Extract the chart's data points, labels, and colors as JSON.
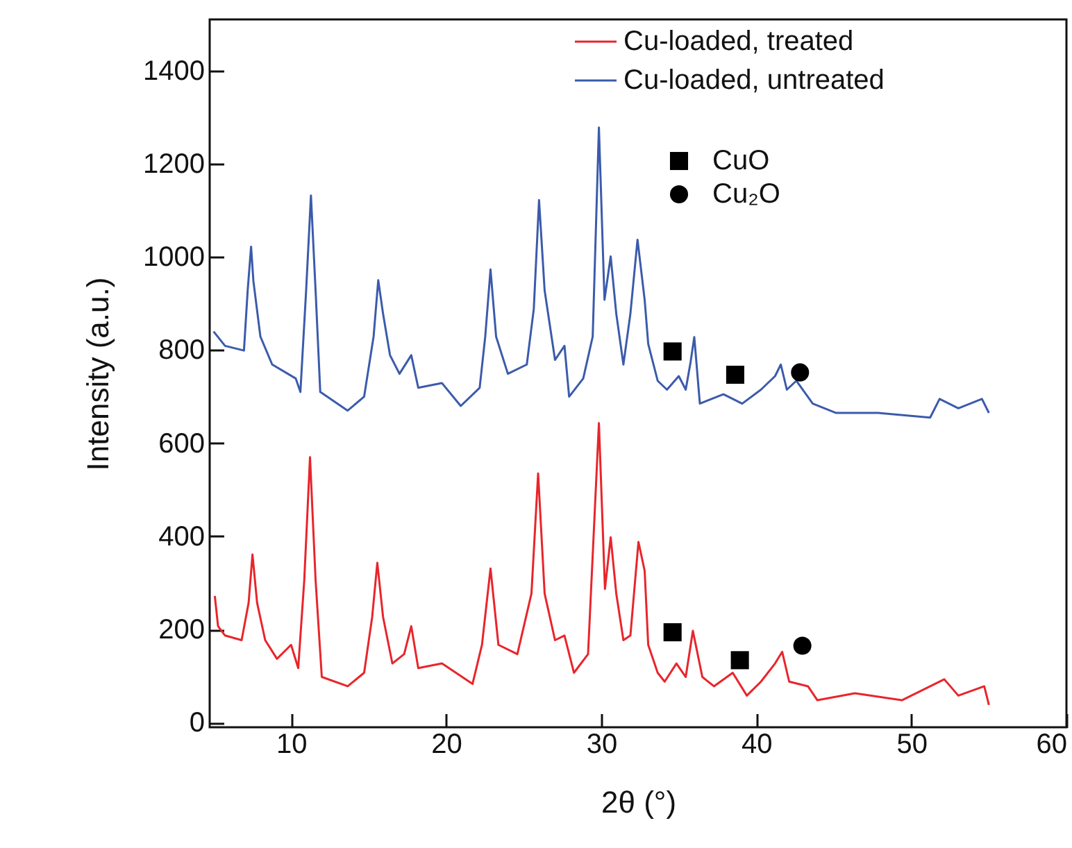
{
  "chart_data": {
    "type": "line",
    "xlabel": "2θ (°)",
    "ylabel": "Intensity (a.u.)",
    "xlim": [
      4.75,
      60
    ],
    "ylim": [
      -10,
      1510
    ],
    "xticks": [
      10,
      20,
      30,
      40,
      50,
      60
    ],
    "yticks": [
      0,
      200,
      400,
      600,
      800,
      1000,
      1200,
      1400
    ],
    "grid": false,
    "legend": "top right",
    "series": [
      {
        "name": "Cu-loaded, treated",
        "color": "#e8252b",
        "x": [
          5.08,
          5.29,
          5.74,
          6.81,
          7.26,
          7.51,
          7.81,
          8.33,
          9.09,
          10.0,
          10.46,
          10.85,
          11.22,
          11.58,
          11.98,
          13.65,
          14.71,
          15.23,
          15.56,
          15.93,
          16.53,
          17.29,
          17.75,
          18.2,
          19.73,
          21.7,
          22.31,
          22.86,
          23.37,
          24.59,
          25.5,
          25.93,
          26.35,
          27.02,
          27.63,
          28.24,
          29.15,
          29.85,
          30.24,
          30.61,
          30.97,
          31.43,
          31.88,
          32.4,
          32.8,
          33.03,
          33.64,
          34.09,
          34.85,
          35.45,
          35.91,
          36.52,
          37.27,
          38.48,
          39.39,
          40.3,
          41.21,
          41.67,
          42.12,
          43.33,
          43.94,
          46.36,
          49.39,
          52.12,
          53.03,
          54.7,
          55.0
        ],
        "values": [
          272,
          207,
          187,
          177,
          257,
          361,
          257,
          177,
          137,
          167,
          117,
          306,
          570,
          306,
          98,
          78,
          107,
          227,
          343,
          227,
          127,
          147,
          207,
          117,
          127,
          83,
          167,
          331,
          167,
          147,
          277,
          535,
          277,
          177,
          187,
          107,
          147,
          643,
          287,
          398,
          277,
          177,
          187,
          388,
          326,
          167,
          107,
          88,
          127,
          98,
          197,
          98,
          78,
          107,
          58,
          88,
          127,
          152,
          88,
          78,
          48,
          63,
          48,
          93,
          58,
          78,
          38
        ]
      },
      {
        "name": "Cu-loaded, untreated",
        "color": "#3b5bab",
        "x": [
          5.0,
          5.74,
          6.96,
          7.2,
          7.42,
          7.57,
          8.02,
          8.78,
          10.3,
          10.6,
          10.97,
          11.28,
          11.58,
          11.88,
          13.65,
          14.71,
          15.32,
          15.62,
          15.93,
          16.38,
          16.99,
          17.75,
          18.2,
          19.73,
          20.94,
          22.16,
          22.52,
          22.86,
          23.22,
          23.98,
          25.2,
          25.65,
          25.99,
          26.35,
          27.02,
          27.63,
          27.93,
          28.84,
          29.45,
          29.85,
          30.21,
          30.61,
          30.97,
          31.43,
          31.88,
          32.34,
          32.8,
          33.03,
          33.64,
          34.24,
          35.0,
          35.45,
          35.76,
          36.0,
          36.36,
          37.88,
          39.09,
          40.3,
          41.21,
          41.58,
          41.97,
          42.58,
          43.64,
          45.15,
          47.88,
          51.21,
          51.82,
          53.03,
          54.55,
          55.0
        ],
        "values": [
          840,
          809,
          799,
          928,
          1022,
          948,
          829,
          769,
          739,
          710,
          928,
          1132,
          928,
          710,
          670,
          700,
          829,
          950,
          878,
          789,
          749,
          789,
          719,
          729,
          680,
          719,
          829,
          973,
          829,
          749,
          769,
          888,
          1122,
          928,
          779,
          809,
          700,
          739,
          829,
          1278,
          908,
          1001,
          878,
          769,
          878,
          1037,
          908,
          813,
          734,
          715,
          744,
          715,
          774,
          828,
          685,
          705,
          685,
          715,
          744,
          769,
          715,
          734,
          685,
          665,
          665,
          655,
          695,
          675,
          695,
          665
        ]
      },
      {
        "name": "CuO",
        "color": "#000000",
        "type": "scatter",
        "marker": "square",
        "x": [
          34.6,
          38.64,
          34.6,
          38.94
        ],
        "values": [
          797,
          747,
          194,
          134
        ]
      },
      {
        "name": "Cu₂O",
        "color": "#000000",
        "type": "scatter",
        "marker": "circle",
        "x": [
          42.82,
          42.97
        ],
        "values": [
          752,
          165
        ]
      }
    ]
  }
}
